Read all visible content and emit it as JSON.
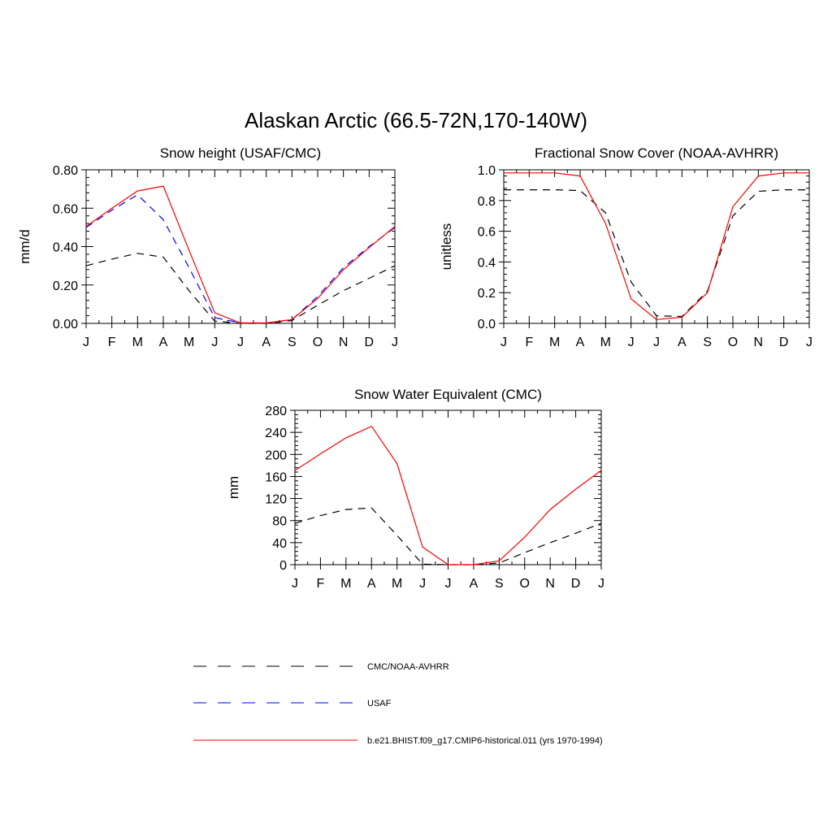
{
  "main_title": "Alaskan Arctic (66.5-72N,170-140W)",
  "legend": [
    {
      "label": "CMC/NOAA-AVHRR",
      "color": "#000000",
      "dash": "dash"
    },
    {
      "label": "USAF",
      "color": "#0000ff",
      "dash": "dash"
    },
    {
      "label": "b.e21.BHIST.f09_g17.CMIP6-historical.011 (yrs 1970-1994)",
      "color": "#ff0000",
      "dash": "solid"
    }
  ],
  "chart_data": [
    {
      "type": "line",
      "title": "Snow height (USAF/CMC)",
      "xlabel": "",
      "ylabel": "mm/d",
      "categories": [
        "J",
        "F",
        "M",
        "A",
        "M",
        "J",
        "J",
        "A",
        "S",
        "O",
        "N",
        "D",
        "J"
      ],
      "ylim": [
        0,
        0.8
      ],
      "yticks": [
        0,
        0.2,
        0.4,
        0.6,
        0.8
      ],
      "ytick_labels": [
        "0.00",
        "0.20",
        "0.40",
        "0.60",
        "0.80"
      ],
      "series": [
        {
          "name": "CMC/NOAA-AVHRR",
          "color": "#000000",
          "dash": "dash",
          "values": [
            0.3,
            0.335,
            0.365,
            0.345,
            0.17,
            0.012,
            0.0,
            0.0,
            0.015,
            0.095,
            0.17,
            0.235,
            0.3
          ]
        },
        {
          "name": "USAF",
          "color": "#0000ff",
          "dash": "dash",
          "values": [
            0.5,
            0.59,
            0.67,
            0.54,
            0.29,
            0.03,
            0.002,
            0.002,
            0.02,
            0.14,
            0.29,
            0.4,
            0.5
          ]
        },
        {
          "name": "b.e21.BHIST.f09_g17.CMIP6-historical.011 (yrs 1970-1994)",
          "color": "#ff0000",
          "dash": "solid",
          "values": [
            0.505,
            0.6,
            0.69,
            0.715,
            0.38,
            0.055,
            0.002,
            0.002,
            0.02,
            0.13,
            0.28,
            0.395,
            0.505
          ]
        }
      ]
    },
    {
      "type": "line",
      "title": "Fractional Snow Cover (NOAA-AVHRR)",
      "xlabel": "",
      "ylabel": "unitless",
      "categories": [
        "J",
        "F",
        "M",
        "A",
        "M",
        "J",
        "J",
        "A",
        "S",
        "O",
        "N",
        "D",
        "J"
      ],
      "ylim": [
        0,
        1.0
      ],
      "yticks": [
        0,
        0.2,
        0.4,
        0.6,
        0.8,
        1.0
      ],
      "ytick_labels": [
        "0.0",
        "0.2",
        "0.4",
        "0.6",
        "0.8",
        "1.0"
      ],
      "series": [
        {
          "name": "CMC/NOAA-AVHRR",
          "color": "#000000",
          "dash": "dash",
          "values": [
            0.87,
            0.87,
            0.87,
            0.865,
            0.72,
            0.27,
            0.05,
            0.045,
            0.21,
            0.7,
            0.86,
            0.87,
            0.87
          ]
        },
        {
          "name": "b.e21.BHIST.f09_g17.CMIP6-historical.011 (yrs 1970-1994)",
          "color": "#ff0000",
          "dash": "solid",
          "values": [
            0.98,
            0.98,
            0.98,
            0.96,
            0.65,
            0.16,
            0.025,
            0.04,
            0.2,
            0.76,
            0.96,
            0.98,
            0.98
          ]
        }
      ]
    },
    {
      "type": "line",
      "title": "Snow Water Equivalent (CMC)",
      "xlabel": "",
      "ylabel": "mm",
      "categories": [
        "J",
        "F",
        "M",
        "A",
        "M",
        "J",
        "J",
        "A",
        "S",
        "O",
        "N",
        "D",
        "J"
      ],
      "ylim": [
        0,
        280
      ],
      "yticks": [
        0,
        40,
        80,
        120,
        160,
        200,
        240,
        280
      ],
      "ytick_labels": [
        "0",
        "40",
        "80",
        "120",
        "160",
        "200",
        "240",
        "280"
      ],
      "series": [
        {
          "name": "CMC/NOAA-AVHRR",
          "color": "#000000",
          "dash": "dash",
          "values": [
            75,
            89,
            100,
            103,
            53,
            1,
            0,
            0,
            3,
            22,
            40,
            57,
            75
          ]
        },
        {
          "name": "b.e21.BHIST.f09_g17.CMIP6-historical.011 (yrs 1970-1994)",
          "color": "#ff0000",
          "dash": "solid",
          "values": [
            171,
            201,
            230,
            251,
            183,
            32,
            0,
            0,
            7,
            50,
            100,
            137,
            171
          ]
        }
      ]
    }
  ]
}
